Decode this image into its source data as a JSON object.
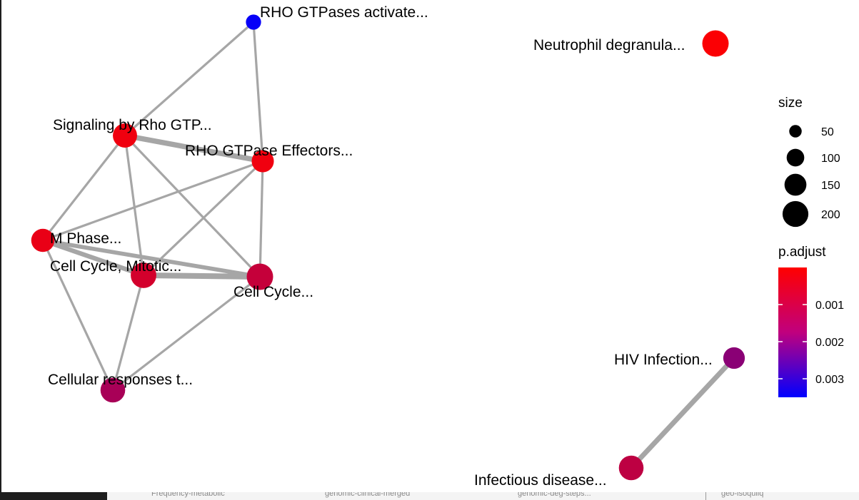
{
  "diagram": {
    "nodes": [
      {
        "id": "rho_act",
        "label": "RHO GTPases activate...",
        "size": 20,
        "p_adjust": 0.0034
      },
      {
        "id": "neut",
        "label": "Neutrophil degranula...",
        "size": 200,
        "p_adjust": 5e-05
      },
      {
        "id": "sig_rho",
        "label": "Signaling by Rho GTP...",
        "size": 150,
        "p_adjust": 0.0002
      },
      {
        "id": "rho_eff",
        "label": "RHO GTPase Effectors...",
        "size": 110,
        "p_adjust": 0.0002
      },
      {
        "id": "mphase",
        "label": "M Phase...",
        "size": 130,
        "p_adjust": 0.0003
      },
      {
        "id": "ccm",
        "label": "Cell Cycle, Mitotic...",
        "size": 180,
        "p_adjust": 0.0006
      },
      {
        "id": "cc",
        "label": "Cell Cycle...",
        "size": 200,
        "p_adjust": 0.0008
      },
      {
        "id": "cresp",
        "label": "Cellular responses t...",
        "size": 160,
        "p_adjust": 0.0012
      },
      {
        "id": "hiv",
        "label": "HIV Infection...",
        "size": 100,
        "p_adjust": 0.0016
      },
      {
        "id": "infect",
        "label": "Infectious disease...",
        "size": 160,
        "p_adjust": 0.0009
      }
    ],
    "edges": [
      {
        "source": "rho_act",
        "target": "sig_rho",
        "weight": 1
      },
      {
        "source": "rho_act",
        "target": "rho_eff",
        "weight": 1
      },
      {
        "source": "sig_rho",
        "target": "rho_eff",
        "weight": 2.3
      },
      {
        "source": "sig_rho",
        "target": "mphase",
        "weight": 1
      },
      {
        "source": "sig_rho",
        "target": "ccm",
        "weight": 1
      },
      {
        "source": "sig_rho",
        "target": "cc",
        "weight": 1
      },
      {
        "source": "rho_eff",
        "target": "mphase",
        "weight": 1
      },
      {
        "source": "rho_eff",
        "target": "ccm",
        "weight": 1
      },
      {
        "source": "rho_eff",
        "target": "cc",
        "weight": 1
      },
      {
        "source": "mphase",
        "target": "ccm",
        "weight": 2
      },
      {
        "source": "mphase",
        "target": "cc",
        "weight": 1.8
      },
      {
        "source": "mphase",
        "target": "cresp",
        "weight": 1
      },
      {
        "source": "ccm",
        "target": "cc",
        "weight": 2.5
      },
      {
        "source": "ccm",
        "target": "cresp",
        "weight": 1
      },
      {
        "source": "cc",
        "target": "cresp",
        "weight": 1
      },
      {
        "source": "hiv",
        "target": "infect",
        "weight": 2.2
      }
    ]
  },
  "legend": {
    "size_title": "size",
    "size_values": [
      50,
      100,
      150,
      200
    ],
    "size_labels": [
      "50",
      "100",
      "150",
      "200"
    ],
    "color_title": "p.adjust",
    "color_low": "#ff0000",
    "color_high": "#0000ff",
    "color_range": [
      0,
      0.0035
    ],
    "color_ticks": [
      0.001,
      0.002,
      0.003
    ],
    "color_tick_labels": [
      "0.001",
      "0.002",
      "0.003"
    ]
  },
  "background_strip": {
    "items": [
      "Frequency-metabolic",
      "genomic-clinical-merged",
      "genomic-deg-steps...",
      "geo-isoquilq"
    ]
  }
}
